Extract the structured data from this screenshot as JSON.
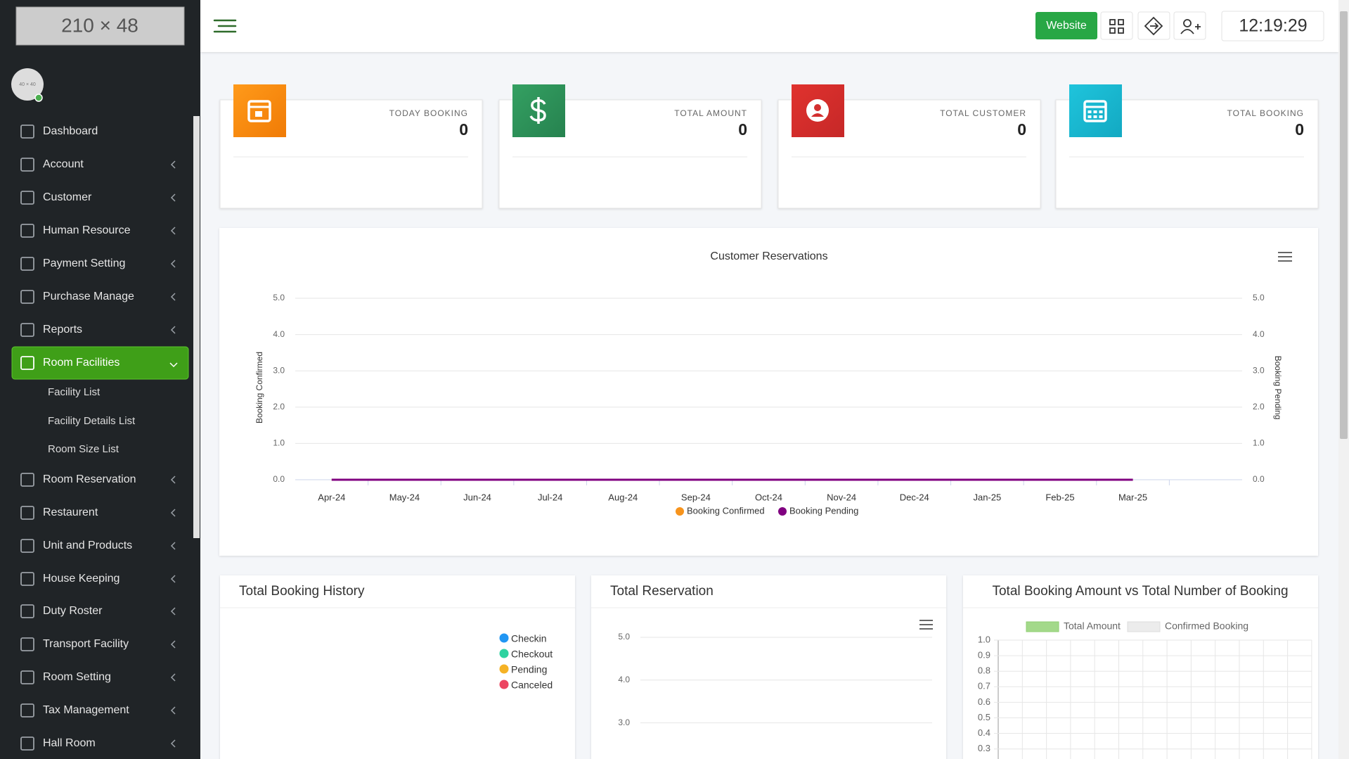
{
  "logo": "210 × 48",
  "avatar": "40 × 40",
  "sidebar": {
    "menu": [
      "Dashboard",
      "Account",
      "Customer",
      "Human Resource",
      "Payment Setting",
      "Purchase Manage",
      "Reports",
      "Room Facilities",
      "Room Reservation",
      "Restaurent",
      "Unit and Products",
      "House Keeping",
      "Duty Roster",
      "Transport Facility",
      "Room Setting",
      "Tax Management",
      "Hall Room"
    ],
    "submenu": [
      "Facility List",
      "Facility Details List",
      "Room Size List"
    ]
  },
  "topbar": {
    "website_button": "Website",
    "clock": "12:19:29"
  },
  "stats": [
    {
      "label": "TODAY BOOKING",
      "value": 0
    },
    {
      "label": "TOTAL AMOUNT",
      "value": 0
    },
    {
      "label": "TOTAL CUSTOMER",
      "value": 0
    },
    {
      "label": "TOTAL BOOKING",
      "value": 0
    }
  ],
  "chart_data": [
    {
      "type": "line",
      "title": "Customer Reservations",
      "categories": [
        "Apr-24",
        "May-24",
        "Jun-24",
        "Jul-24",
        "Aug-24",
        "Sep-24",
        "Oct-24",
        "Nov-24",
        "Dec-24",
        "Jan-25",
        "Feb-25",
        "Mar-25"
      ],
      "series": [
        {
          "name": "Booking Confirmed",
          "color": "#f7941d",
          "values": [
            0,
            0,
            0,
            0,
            0,
            0,
            0,
            0,
            0,
            0,
            0,
            0
          ]
        },
        {
          "name": "Booking Pending",
          "color": "#800080",
          "axis": "y2",
          "values": [
            0,
            0,
            0,
            0,
            0,
            0,
            0,
            0,
            0,
            0,
            0,
            0
          ]
        }
      ],
      "y_label": "Booking Confirmed",
      "y2_label": "Booking Pending",
      "ylim": [
        0,
        5
      ],
      "yticks": [
        {
          "value": 0,
          "label": "0.0"
        },
        {
          "value": 1,
          "label": "1.0"
        },
        {
          "value": 2,
          "label": "2.0"
        },
        {
          "value": 3,
          "label": "3.0"
        },
        {
          "value": 4,
          "label": "4.0"
        },
        {
          "value": 5,
          "label": "5.0"
        }
      ],
      "y2lim": [
        0,
        5
      ],
      "y2ticks": [
        {
          "value": 0,
          "label": "0.0"
        },
        {
          "value": 1,
          "label": "1.0"
        },
        {
          "value": 2,
          "label": "2.0"
        },
        {
          "value": 3,
          "label": "3.0"
        },
        {
          "value": 4,
          "label": "4.0"
        },
        {
          "value": 5,
          "label": "5.0"
        }
      ],
      "grid": true
    },
    {
      "type": "pie",
      "title": "Total Booking History",
      "labels": [
        "Checkin",
        "Checkout",
        "Pending",
        "Canceled"
      ],
      "colors": [
        "#2196f3",
        "#2ed3a0",
        "#f5b225",
        "#ec4561"
      ]
    },
    {
      "type": "line",
      "title": "Total Reservation",
      "ylim": [
        0,
        5
      ],
      "yticks": [
        {
          "value": 5,
          "label": "5.0"
        },
        {
          "value": 4,
          "label": "4.0"
        },
        {
          "value": 3,
          "label": "3.0"
        }
      ],
      "grid": true
    },
    {
      "type": "bar",
      "title": "Total Booking Amount vs Total Number of Booking",
      "series": [
        {
          "name": "Total Amount",
          "color": "#a3d98a"
        },
        {
          "name": "Confirmed Booking",
          "color": "#ececec"
        }
      ],
      "ylim": [
        0,
        1
      ],
      "yticks": [
        {
          "value": 1,
          "label": "1.0"
        },
        0.9,
        0.8,
        0.7,
        0.6,
        0.5,
        0.4,
        0.3
      ],
      "grid": true
    }
  ]
}
